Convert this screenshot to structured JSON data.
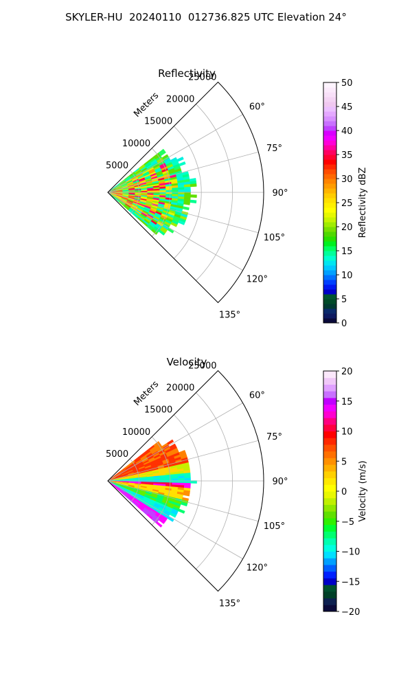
{
  "figure": {
    "title": "SKYLER-HU  20240110  012736.825 UTC Elevation 24°"
  },
  "chart_data": [
    {
      "type": "heatmap",
      "projection": "polar-sector",
      "title": "Reflectivity",
      "radial_label": "Meters",
      "radial_ticks": [
        "5000",
        "10000",
        "15000",
        "20000",
        "25000"
      ],
      "radial_tick_values": [
        5000,
        10000,
        15000,
        20000,
        25000
      ],
      "radial_max": 25000,
      "angle_ticks": [
        "60°",
        "75°",
        "90°",
        "105°",
        "120°",
        "135°"
      ],
      "angle_tick_values": [
        60,
        75,
        90,
        105,
        120,
        135
      ],
      "theta_range": [
        45,
        135
      ],
      "grid": true,
      "data_extent": {
        "theta_range": [
          52,
          130
        ],
        "range_m": [
          0,
          13000
        ]
      },
      "colorbar": {
        "label": "Reflectivity dBZ",
        "min": 0,
        "max": 50,
        "ticks": [
          "0",
          "5",
          "10",
          "15",
          "20",
          "25",
          "30",
          "35",
          "40",
          "45",
          "50"
        ],
        "tick_values": [
          0,
          5,
          10,
          15,
          20,
          25,
          30,
          35,
          40,
          45,
          50
        ],
        "colors": [
          "#0a0a3a",
          "#0d1a60",
          "#0a2a6a",
          "#003a30",
          "#004a28",
          "#005530",
          "#0000c8",
          "#0018f0",
          "#0040ff",
          "#0070ff",
          "#00a0ff",
          "#00c8ff",
          "#00e6f0",
          "#00ffd0",
          "#00ff9a",
          "#00ff60",
          "#00f020",
          "#28e000",
          "#50d800",
          "#78e000",
          "#a0ec00",
          "#c8f400",
          "#e6f800",
          "#ffff00",
          "#fff000",
          "#ffe000",
          "#ffcc00",
          "#ffb400",
          "#ff9c00",
          "#ff8400",
          "#ff6800",
          "#ff4c00",
          "#ff2800",
          "#ff0000",
          "#ff0030",
          "#ff0060",
          "#ff00a0",
          "#ff00d8",
          "#f000ff",
          "#d800ff",
          "#c040ff",
          "#c870ff",
          "#d890ff",
          "#e4a8ff",
          "#ecc0ff",
          "#f0c8f0",
          "#f4d4f4",
          "#f8e0f8",
          "#fbeafb",
          "#fdf4fd"
        ]
      },
      "field_mix": [
        "#ffe000",
        "#ffcc00",
        "#f0ec00",
        "#ff9c00",
        "#e0f800",
        "#a0ec00",
        "#60e000",
        "#00ff8c",
        "#00ffc0",
        "#ff0030",
        "#ff0080"
      ],
      "edge_mix": [
        "#00ff90",
        "#00ffc8",
        "#20ff60",
        "#00f0e0",
        "#60e000",
        "#a0ec00"
      ]
    },
    {
      "type": "heatmap",
      "projection": "polar-sector",
      "title": "Velocity",
      "radial_label": "Meters",
      "radial_ticks": [
        "5000",
        "10000",
        "15000",
        "20000",
        "25000"
      ],
      "radial_tick_values": [
        5000,
        10000,
        15000,
        20000,
        25000
      ],
      "radial_max": 25000,
      "angle_ticks": [
        "60°",
        "75°",
        "90°",
        "105°",
        "120°",
        "135°"
      ],
      "angle_tick_values": [
        60,
        75,
        90,
        105,
        120,
        135
      ],
      "theta_range": [
        45,
        135
      ],
      "grid": true,
      "data_extent": {
        "theta_range": [
          52,
          130
        ],
        "range_m": [
          0,
          13000
        ]
      },
      "colorbar": {
        "label": "Velocity (m/s)",
        "min": -20,
        "max": 20,
        "ticks": [
          "−20",
          "−15",
          "−10",
          "−5",
          "0",
          "5",
          "10",
          "15",
          "20"
        ],
        "tick_values": [
          -20,
          -15,
          -10,
          -5,
          0,
          5,
          10,
          15,
          20
        ],
        "colors": [
          "#0a0a3a",
          "#0d2050",
          "#004028",
          "#005030",
          "#0000c8",
          "#0020ff",
          "#0060ff",
          "#00a0ff",
          "#00e0ff",
          "#00ffe0",
          "#00ffb0",
          "#00ff70",
          "#00ff30",
          "#30f000",
          "#60e000",
          "#90e800",
          "#c0f000",
          "#e8f800",
          "#ffff00",
          "#ffe800",
          "#ffd000",
          "#ffb000",
          "#ff9000",
          "#ff7000",
          "#ff5000",
          "#ff2800",
          "#ff0000",
          "#ff0040",
          "#ff0080",
          "#ff00d0",
          "#f000ff",
          "#c000ff",
          "#c870ff",
          "#e0a0ff",
          "#f0c8f8",
          "#fbe8fb"
        ]
      },
      "bands": [
        {
          "theta_range": [
            52,
            76
          ],
          "color": "#ff3000",
          "alt": "#ff8000"
        },
        {
          "theta_range": [
            76,
            84
          ],
          "color": "#ffd800",
          "alt": "#c8f000"
        },
        {
          "theta_range": [
            84,
            90
          ],
          "color": "#00ffc0",
          "alt": "#00e0ff"
        },
        {
          "theta_range": [
            90,
            94
          ],
          "color": "#ff0040",
          "alt": "#ff00ff"
        },
        {
          "theta_range": [
            94,
            104
          ],
          "color": "#ffe000",
          "alt": "#ff9000"
        },
        {
          "theta_range": [
            104,
            112
          ],
          "color": "#60f000",
          "alt": "#00ff70"
        },
        {
          "theta_range": [
            112,
            122
          ],
          "color": "#00ffd0",
          "alt": "#00e0ff"
        },
        {
          "theta_range": [
            122,
            130
          ],
          "color": "#ff00ff",
          "alt": "#c040ff"
        }
      ]
    }
  ]
}
